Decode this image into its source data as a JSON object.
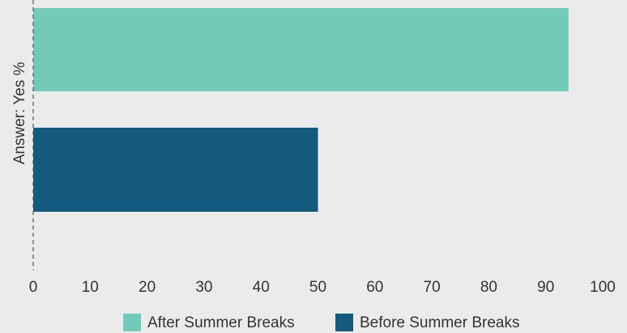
{
  "chart_data": {
    "type": "bar",
    "orientation": "horizontal",
    "ylabel": "Answer: Yes %",
    "xlim": [
      0,
      100
    ],
    "x_ticks": [
      0,
      10,
      20,
      30,
      40,
      50,
      60,
      70,
      80,
      90,
      100
    ],
    "grid": false,
    "legend_position": "bottom",
    "series": [
      {
        "name": "After Summer Breaks",
        "value": 94,
        "color": "#72cbb9"
      },
      {
        "name": "Before Summer Breaks",
        "value": 50,
        "color": "#145a7e"
      }
    ]
  }
}
